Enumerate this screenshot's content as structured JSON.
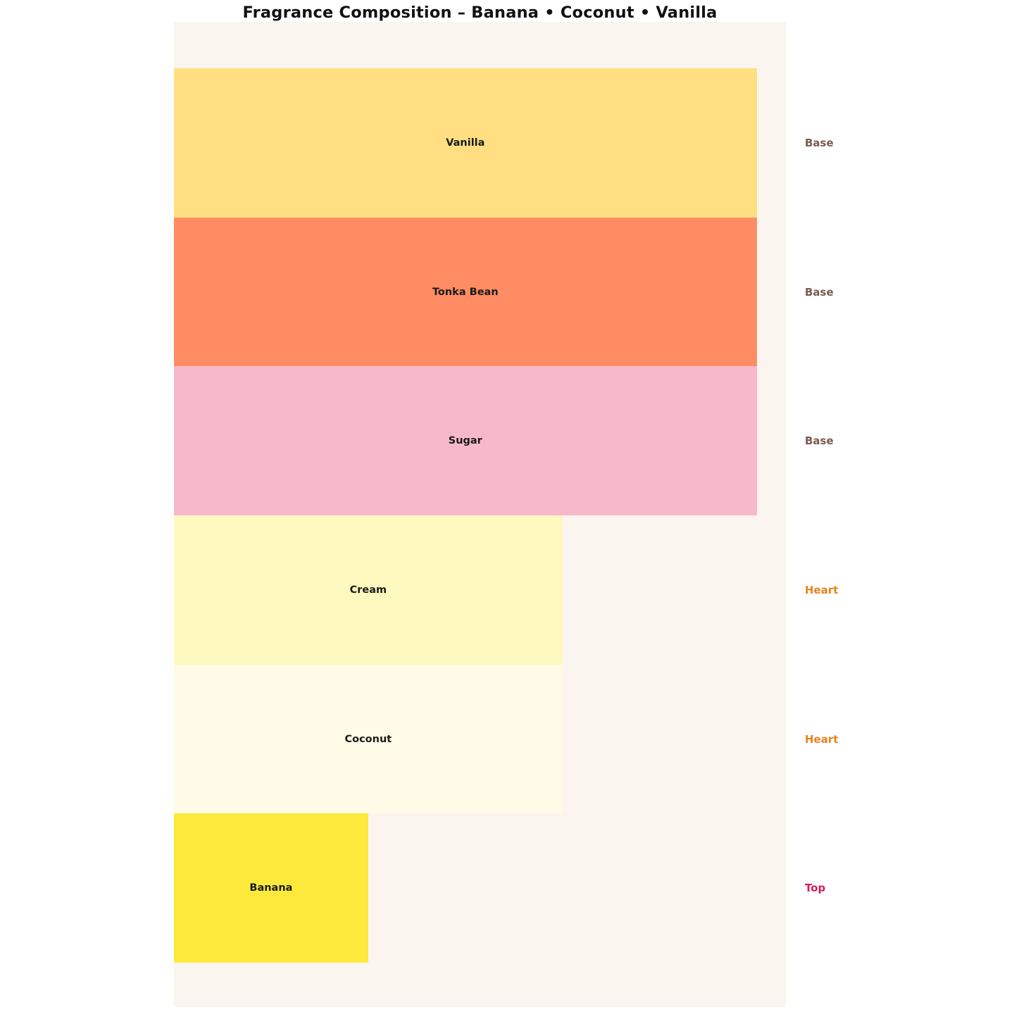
{
  "title": "Fragrance Composition – Banana • Coconut • Vanilla",
  "colors": {
    "page_bg": "#FFFFFF",
    "plot_bg": "#FAF5EF",
    "title_text": "#111111",
    "bar_label_text": "#1A1A1A",
    "note_base": "#7A5A50",
    "note_heart": "#E8821E",
    "note_top": "#D21E60"
  },
  "chart_data": {
    "type": "bar",
    "orientation": "horizontal",
    "title": "Fragrance Composition – Banana • Coconut • Vanilla",
    "xlabel": "",
    "ylabel": "",
    "xlim": [
      0,
      3.15
    ],
    "grid": false,
    "legend": "none",
    "axes_visible": false,
    "categories": [
      "Vanilla",
      "Tonka Bean",
      "Sugar",
      "Cream",
      "Coconut",
      "Banana"
    ],
    "values": [
      3,
      3,
      3,
      2,
      2,
      1
    ],
    "note_types": [
      "Base",
      "Base",
      "Base",
      "Heart",
      "Heart",
      "Top"
    ],
    "rows": [
      {
        "label": "Vanilla",
        "value": 3,
        "note_type": "Base",
        "bar_color": "#FFDF81",
        "note_color": "#7A5A50"
      },
      {
        "label": "Tonka Bean",
        "value": 3,
        "note_type": "Base",
        "bar_color": "#FF8C63",
        "note_color": "#7A5A50"
      },
      {
        "label": "Sugar",
        "value": 3,
        "note_type": "Base",
        "bar_color": "#F8B8CB",
        "note_color": "#7A5A50"
      },
      {
        "label": "Cream",
        "value": 2,
        "note_type": "Heart",
        "bar_color": "#FDF8BE",
        "note_color": "#E8821E"
      },
      {
        "label": "Coconut",
        "value": 2,
        "note_type": "Heart",
        "bar_color": "#FFFBE7",
        "note_color": "#E8821E"
      },
      {
        "label": "Banana",
        "value": 1,
        "note_type": "Top",
        "bar_color": "#FCE93B",
        "note_color": "#D21E60"
      }
    ]
  }
}
